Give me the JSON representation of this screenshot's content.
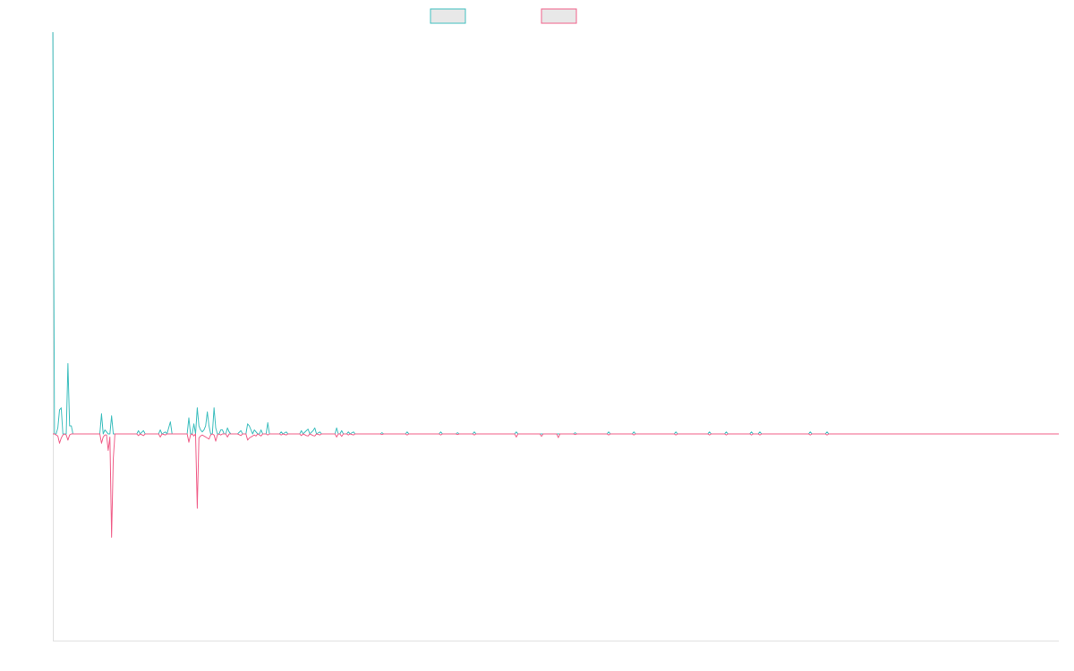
{
  "chart_data": {
    "type": "line",
    "title": "",
    "xlabel": "",
    "ylabel": "",
    "grid": false,
    "legend_placement": "top-center",
    "ylim": [
      -1.0,
      1.0
    ],
    "x_count": 600,
    "colors": {
      "series_1": "#3fbfbf",
      "series_2": "#f0608a",
      "legend_fill": "#e8e8e8",
      "axis": "#e0e0e0"
    },
    "series": [
      {
        "name": "",
        "points": [
          [
            0,
            1.0
          ],
          [
            1,
            0.0
          ],
          [
            2,
            0.0
          ],
          [
            3,
            0.015
          ],
          [
            4,
            0.06
          ],
          [
            5,
            0.065
          ],
          [
            6,
            0.0
          ],
          [
            7,
            0.0
          ],
          [
            8,
            0.0
          ],
          [
            9,
            0.175
          ],
          [
            10,
            0.02
          ],
          [
            11,
            0.02
          ],
          [
            12,
            0.0
          ],
          [
            13,
            0.0
          ],
          [
            19,
            0.0
          ],
          [
            20,
            0.0
          ],
          [
            28,
            0.0
          ],
          [
            29,
            0.05
          ],
          [
            30,
            0.0
          ],
          [
            31,
            0.01
          ],
          [
            32,
            0.005
          ],
          [
            33,
            0.0
          ],
          [
            34,
            0.0
          ],
          [
            35,
            0.045
          ],
          [
            36,
            0.0
          ],
          [
            37,
            0.0
          ],
          [
            50,
            0.0
          ],
          [
            51,
            0.008
          ],
          [
            52,
            0.0
          ],
          [
            54,
            0.008
          ],
          [
            55,
            0.0
          ],
          [
            63,
            0.0
          ],
          [
            64,
            0.01
          ],
          [
            65,
            0.0
          ],
          [
            67,
            0.005
          ],
          [
            68,
            0.0
          ],
          [
            70,
            0.03
          ],
          [
            71,
            0.0
          ],
          [
            80,
            0.0
          ],
          [
            81,
            0.04
          ],
          [
            82,
            0.0
          ],
          [
            83,
            0.0
          ],
          [
            84,
            0.025
          ],
          [
            85,
            0.0
          ],
          [
            86,
            0.065
          ],
          [
            87,
            0.02
          ],
          [
            88,
            0.01
          ],
          [
            89,
            0.005
          ],
          [
            90,
            0.01
          ],
          [
            91,
            0.02
          ],
          [
            92,
            0.055
          ],
          [
            93,
            0.02
          ],
          [
            94,
            0.0
          ],
          [
            95,
            0.0
          ],
          [
            96,
            0.065
          ],
          [
            97,
            0.015
          ],
          [
            98,
            0.0
          ],
          [
            99,
            0.0
          ],
          [
            100,
            0.01
          ],
          [
            101,
            0.01
          ],
          [
            102,
            0.0
          ],
          [
            103,
            0.0
          ],
          [
            104,
            0.015
          ],
          [
            105,
            0.005
          ],
          [
            106,
            0.0
          ],
          [
            110,
            0.0
          ],
          [
            112,
            0.008
          ],
          [
            113,
            0.0
          ],
          [
            115,
            0.0
          ],
          [
            116,
            0.025
          ],
          [
            117,
            0.02
          ],
          [
            118,
            0.01
          ],
          [
            119,
            0.0
          ],
          [
            120,
            0.01
          ],
          [
            121,
            0.005
          ],
          [
            122,
            0.0
          ],
          [
            123,
            0.0
          ],
          [
            124,
            0.01
          ],
          [
            125,
            0.0
          ],
          [
            127,
            0.0
          ],
          [
            128,
            0.028
          ],
          [
            129,
            0.0
          ],
          [
            130,
            0.0
          ],
          [
            135,
            0.0
          ],
          [
            136,
            0.005
          ],
          [
            137,
            0.0
          ],
          [
            139,
            0.005
          ],
          [
            140,
            0.0
          ],
          [
            147,
            0.0
          ],
          [
            148,
            0.008
          ],
          [
            149,
            0.0
          ],
          [
            151,
            0.008
          ],
          [
            152,
            0.012
          ],
          [
            153,
            0.0
          ],
          [
            155,
            0.008
          ],
          [
            156,
            0.015
          ],
          [
            157,
            0.0
          ],
          [
            159,
            0.005
          ],
          [
            160,
            0.0
          ],
          [
            168,
            0.0
          ],
          [
            169,
            0.015
          ],
          [
            170,
            0.0
          ],
          [
            171,
            0.0
          ],
          [
            172,
            0.008
          ],
          [
            173,
            0.0
          ],
          [
            175,
            0.0
          ],
          [
            176,
            0.005
          ],
          [
            177,
            0.0
          ],
          [
            179,
            0.005
          ],
          [
            180,
            0.0
          ],
          [
            195,
            0.0
          ],
          [
            196,
            0.003
          ],
          [
            197,
            0.0
          ],
          [
            210,
            0.0
          ],
          [
            211,
            0.005
          ],
          [
            212,
            0.0
          ],
          [
            230,
            0.0
          ],
          [
            231,
            0.005
          ],
          [
            232,
            0.0
          ],
          [
            240,
            0.0
          ],
          [
            241,
            0.003
          ],
          [
            242,
            0.0
          ],
          [
            250,
            0.0
          ],
          [
            251,
            0.005
          ],
          [
            252,
            0.0
          ],
          [
            275,
            0.0
          ],
          [
            276,
            0.005
          ],
          [
            277,
            0.0
          ],
          [
            310,
            0.0
          ],
          [
            311,
            0.003
          ],
          [
            312,
            0.0
          ],
          [
            330,
            0.0
          ],
          [
            331,
            0.005
          ],
          [
            332,
            0.0
          ],
          [
            345,
            0.0
          ],
          [
            346,
            0.005
          ],
          [
            347,
            0.0
          ],
          [
            370,
            0.0
          ],
          [
            371,
            0.005
          ],
          [
            372,
            0.0
          ],
          [
            390,
            0.0
          ],
          [
            391,
            0.005
          ],
          [
            392,
            0.0
          ],
          [
            400,
            0.0
          ],
          [
            401,
            0.005
          ],
          [
            402,
            0.0
          ],
          [
            415,
            0.0
          ],
          [
            416,
            0.005
          ],
          [
            417,
            0.0
          ],
          [
            420,
            0.0
          ],
          [
            421,
            0.005
          ],
          [
            422,
            0.0
          ],
          [
            450,
            0.0
          ],
          [
            451,
            0.005
          ],
          [
            452,
            0.0
          ],
          [
            460,
            0.0
          ],
          [
            461,
            0.005
          ],
          [
            462,
            0.0
          ],
          [
            599,
            0.0
          ]
        ]
      },
      {
        "name": "",
        "points": [
          [
            0,
            0.0
          ],
          [
            1,
            0.0
          ],
          [
            2,
            -0.005
          ],
          [
            3,
            -0.01
          ],
          [
            4,
            -0.045
          ],
          [
            5,
            -0.02
          ],
          [
            6,
            -0.005
          ],
          [
            7,
            0.0
          ],
          [
            8,
            -0.005
          ],
          [
            9,
            -0.03
          ],
          [
            10,
            -0.005
          ],
          [
            11,
            0.0
          ],
          [
            12,
            0.0
          ],
          [
            13,
            0.0
          ],
          [
            28,
            0.0
          ],
          [
            29,
            -0.045
          ],
          [
            30,
            -0.015
          ],
          [
            31,
            -0.005
          ],
          [
            32,
            -0.005
          ],
          [
            33,
            -0.08
          ],
          [
            34,
            -0.015
          ],
          [
            35,
            -0.5
          ],
          [
            36,
            -0.12
          ],
          [
            37,
            0.0
          ],
          [
            50,
            0.0
          ],
          [
            51,
            -0.008
          ],
          [
            52,
            0.0
          ],
          [
            54,
            -0.008
          ],
          [
            55,
            0.0
          ],
          [
            63,
            0.0
          ],
          [
            64,
            -0.015
          ],
          [
            65,
            0.0
          ],
          [
            67,
            -0.005
          ],
          [
            68,
            0.0
          ],
          [
            70,
            0.0
          ],
          [
            80,
            0.0
          ],
          [
            81,
            -0.04
          ],
          [
            82,
            -0.005
          ],
          [
            83,
            0.0
          ],
          [
            84,
            -0.01
          ],
          [
            85,
            0.0
          ],
          [
            86,
            -0.36
          ],
          [
            87,
            -0.02
          ],
          [
            88,
            -0.01
          ],
          [
            89,
            -0.005
          ],
          [
            90,
            -0.01
          ],
          [
            91,
            -0.015
          ],
          [
            92,
            -0.02
          ],
          [
            93,
            -0.025
          ],
          [
            94,
            -0.005
          ],
          [
            95,
            0.0
          ],
          [
            96,
            -0.005
          ],
          [
            97,
            -0.035
          ],
          [
            98,
            -0.005
          ],
          [
            99,
            0.0
          ],
          [
            100,
            -0.005
          ],
          [
            101,
            0.0
          ],
          [
            103,
            0.0
          ],
          [
            104,
            -0.015
          ],
          [
            105,
            0.0
          ],
          [
            110,
            0.0
          ],
          [
            112,
            -0.008
          ],
          [
            113,
            0.0
          ],
          [
            115,
            0.0
          ],
          [
            116,
            -0.03
          ],
          [
            117,
            -0.02
          ],
          [
            118,
            -0.015
          ],
          [
            119,
            -0.01
          ],
          [
            120,
            -0.005
          ],
          [
            121,
            -0.01
          ],
          [
            122,
            0.0
          ],
          [
            124,
            -0.01
          ],
          [
            125,
            0.0
          ],
          [
            127,
            0.0
          ],
          [
            128,
            -0.005
          ],
          [
            129,
            0.0
          ],
          [
            135,
            0.0
          ],
          [
            136,
            -0.005
          ],
          [
            137,
            0.0
          ],
          [
            139,
            -0.005
          ],
          [
            140,
            0.0
          ],
          [
            147,
            0.0
          ],
          [
            148,
            -0.008
          ],
          [
            149,
            0.0
          ],
          [
            151,
            -0.008
          ],
          [
            152,
            -0.01
          ],
          [
            153,
            0.0
          ],
          [
            155,
            -0.008
          ],
          [
            156,
            -0.01
          ],
          [
            157,
            0.0
          ],
          [
            159,
            -0.005
          ],
          [
            160,
            0.0
          ],
          [
            168,
            0.0
          ],
          [
            169,
            -0.015
          ],
          [
            170,
            0.0
          ],
          [
            171,
            0.0
          ],
          [
            172,
            -0.012
          ],
          [
            173,
            0.0
          ],
          [
            175,
            0.0
          ],
          [
            176,
            -0.005
          ],
          [
            177,
            0.0
          ],
          [
            179,
            -0.005
          ],
          [
            180,
            0.0
          ],
          [
            195,
            0.0
          ],
          [
            196,
            -0.003
          ],
          [
            197,
            0.0
          ],
          [
            210,
            0.0
          ],
          [
            211,
            -0.005
          ],
          [
            212,
            0.0
          ],
          [
            230,
            0.0
          ],
          [
            231,
            -0.005
          ],
          [
            232,
            0.0
          ],
          [
            240,
            0.0
          ],
          [
            241,
            -0.003
          ],
          [
            242,
            0.0
          ],
          [
            250,
            0.0
          ],
          [
            251,
            -0.005
          ],
          [
            252,
            0.0
          ],
          [
            275,
            0.0
          ],
          [
            276,
            -0.015
          ],
          [
            277,
            0.0
          ],
          [
            290,
            0.0
          ],
          [
            291,
            -0.012
          ],
          [
            292,
            0.0
          ],
          [
            300,
            0.0
          ],
          [
            301,
            -0.018
          ],
          [
            302,
            0.0
          ],
          [
            310,
            0.0
          ],
          [
            311,
            -0.003
          ],
          [
            312,
            0.0
          ],
          [
            330,
            0.0
          ],
          [
            331,
            -0.005
          ],
          [
            332,
            0.0
          ],
          [
            345,
            0.0
          ],
          [
            346,
            -0.005
          ],
          [
            347,
            0.0
          ],
          [
            370,
            0.0
          ],
          [
            371,
            -0.005
          ],
          [
            372,
            0.0
          ],
          [
            390,
            0.0
          ],
          [
            391,
            -0.005
          ],
          [
            392,
            0.0
          ],
          [
            400,
            0.0
          ],
          [
            401,
            -0.005
          ],
          [
            402,
            0.0
          ],
          [
            415,
            0.0
          ],
          [
            416,
            -0.005
          ],
          [
            417,
            0.0
          ],
          [
            420,
            0.0
          ],
          [
            421,
            -0.005
          ],
          [
            422,
            0.0
          ],
          [
            450,
            0.0
          ],
          [
            451,
            -0.005
          ],
          [
            452,
            0.0
          ],
          [
            460,
            0.0
          ],
          [
            461,
            -0.005
          ],
          [
            462,
            0.0
          ],
          [
            599,
            0.0
          ]
        ]
      }
    ]
  }
}
